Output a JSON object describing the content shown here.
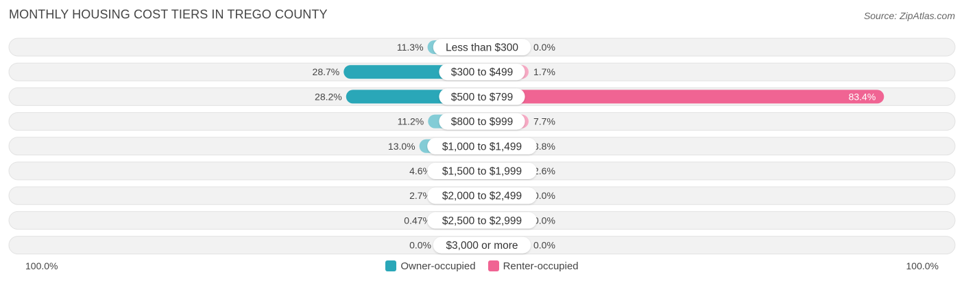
{
  "header": {
    "title": "MONTHLY HOUSING COST TIERS IN TREGO COUNTY",
    "source": "Source: ZipAtlas.com"
  },
  "axis": {
    "left_label": "100.0%",
    "right_label": "100.0%"
  },
  "legend": {
    "owner_label": "Owner-occupied",
    "renter_label": "Renter-occupied",
    "owner_color": "#2aa7b8",
    "renter_color": "#f06493"
  },
  "chart_data": {
    "type": "bar",
    "orientation": "horizontal-diverging",
    "categories": [
      "Less than $300",
      "$300 to $499",
      "$500 to $799",
      "$800 to $999",
      "$1,000 to $1,499",
      "$1,500 to $1,999",
      "$2,000 to $2,499",
      "$2,500 to $2,999",
      "$3,000 or more"
    ],
    "series": [
      {
        "name": "Owner-occupied",
        "values": [
          11.3,
          28.7,
          28.2,
          11.2,
          13.0,
          4.6,
          2.7,
          0.47,
          0.0
        ],
        "labels": [
          "11.3%",
          "28.7%",
          "28.2%",
          "11.2%",
          "13.0%",
          "4.6%",
          "2.7%",
          "0.47%",
          "0.0%"
        ]
      },
      {
        "name": "Renter-occupied",
        "values": [
          0.0,
          1.7,
          83.4,
          7.7,
          3.8,
          2.6,
          0.0,
          0.0,
          0.0
        ],
        "labels": [
          "0.0%",
          "1.7%",
          "83.4%",
          "7.7%",
          "3.8%",
          "2.6%",
          "0.0%",
          "0.0%",
          "0.0%"
        ]
      }
    ],
    "xlim": [
      -100,
      100
    ],
    "legend_position": "bottom-center"
  }
}
